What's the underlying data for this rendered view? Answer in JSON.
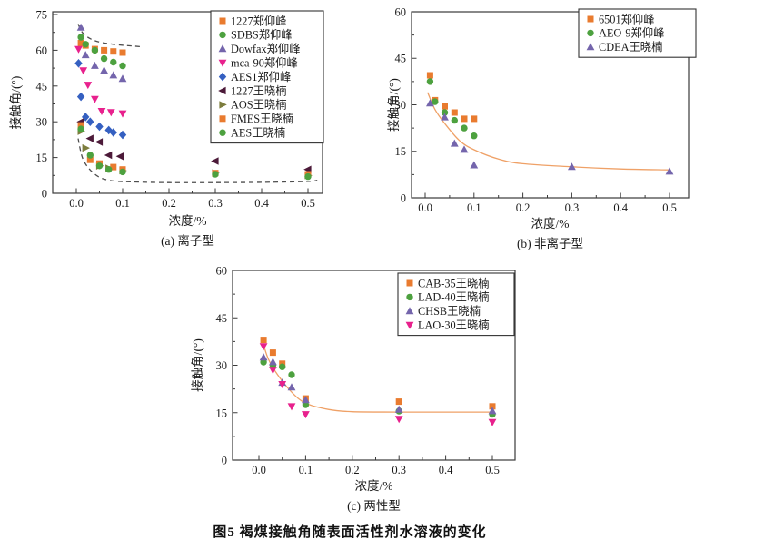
{
  "page": {
    "caption": "图5  褐煤接触角随表面活性剂水溶液的变化",
    "colors": {
      "axis": "#3a3a3a",
      "text": "#1a1a1a",
      "background": "#ffffff"
    }
  },
  "chart_data": [
    {
      "id": "a",
      "type": "scatter",
      "subcaption": "(a) 离子型",
      "xlabel": "浓度/%",
      "ylabel": "接触角/(°)",
      "xlim": [
        -0.05,
        0.53
      ],
      "ylim": [
        0,
        75
      ],
      "grid": false,
      "legend_position": "top-right",
      "xticks": {
        "values": [
          0,
          0.1,
          0.2,
          0.3,
          0.4,
          0.5
        ],
        "labels": [
          "0.0",
          "0.1",
          "0.2",
          "0.3",
          "0.4",
          "0.5"
        ]
      },
      "yticks": {
        "values": [
          0,
          15,
          30,
          45,
          60,
          75
        ],
        "labels": [
          "0",
          "15",
          "30",
          "45",
          "60",
          "75"
        ]
      },
      "series": [
        {
          "name": "1227郑仰峰",
          "marker": "square",
          "color": "#E97B2F",
          "x": [
            0.01,
            0.02,
            0.04,
            0.06,
            0.08,
            0.1
          ],
          "y": [
            63,
            62,
            60.5,
            60,
            59.5,
            59
          ]
        },
        {
          "name": "SDBS郑仰峰",
          "marker": "circle",
          "color": "#4DA13F",
          "x": [
            0.01,
            0.02,
            0.04,
            0.06,
            0.08,
            0.1
          ],
          "y": [
            65.5,
            62.5,
            60,
            56.5,
            55,
            53.5
          ]
        },
        {
          "name": "Dowfax郑仰峰",
          "marker": "triangle-up",
          "color": "#7465AC",
          "x": [
            0.01,
            0.02,
            0.04,
            0.06,
            0.08,
            0.1
          ],
          "y": [
            69.5,
            58,
            53.5,
            51.5,
            49.5,
            48
          ]
        },
        {
          "name": "mca-90郑仰峰",
          "marker": "triangle-down",
          "color": "#E8218D",
          "x": [
            0.005,
            0.015,
            0.025,
            0.04,
            0.055,
            0.075,
            0.1
          ],
          "y": [
            60.5,
            51.5,
            45.5,
            39.5,
            34.5,
            34,
            33.5
          ]
        },
        {
          "name": "AES1郑仰峰",
          "marker": "diamond",
          "color": "#3560C1",
          "x": [
            0.005,
            0.01,
            0.02,
            0.03,
            0.05,
            0.07,
            0.08,
            0.1
          ],
          "y": [
            54.5,
            40.5,
            32,
            30,
            28,
            26.5,
            25.5,
            24.5
          ]
        },
        {
          "name": "1227王晓楠",
          "marker": "triangle-left",
          "color": "#4C1A39",
          "x": [
            0.01,
            0.03,
            0.05,
            0.07,
            0.095,
            0.3,
            0.5
          ],
          "y": [
            30,
            23,
            21.5,
            16,
            15.5,
            13.5,
            10
          ]
        },
        {
          "name": "AOS王晓楠",
          "marker": "triangle-right",
          "color": "#7D7D3D",
          "x": [
            0.01,
            0.02,
            0.05,
            0.07,
            0.1,
            0.3,
            0.5
          ],
          "y": [
            26,
            19,
            11.5,
            10.5,
            9.5,
            8.5,
            7.5
          ]
        },
        {
          "name": "FMES王晓楠",
          "marker": "square",
          "color": "#E97B2F",
          "x": [
            0.01,
            0.03,
            0.05,
            0.08,
            0.1,
            0.3,
            0.5
          ],
          "y": [
            28.5,
            14,
            12.5,
            11,
            10,
            8.5,
            8
          ]
        },
        {
          "name": "AES王晓楠",
          "marker": "circle",
          "color": "#4DA13F",
          "x": [
            0.01,
            0.03,
            0.05,
            0.07,
            0.1,
            0.3,
            0.5
          ],
          "y": [
            27,
            16,
            11.5,
            10,
            9,
            8,
            7
          ]
        }
      ],
      "curves": [
        {
          "name": "upper-envelope",
          "style": "dashed",
          "color": "#4d4d4d",
          "points": [
            [
              0.004,
              71
            ],
            [
              0.015,
              67
            ],
            [
              0.04,
              64
            ],
            [
              0.08,
              62.5
            ],
            [
              0.14,
              61.5
            ]
          ]
        },
        {
          "name": "lower-envelope",
          "style": "dashed",
          "color": "#4d4d4d",
          "points": [
            [
              0.004,
              23
            ],
            [
              0.015,
              14
            ],
            [
              0.04,
              8
            ],
            [
              0.07,
              5.5
            ],
            [
              0.12,
              4.8
            ],
            [
              0.2,
              4.5
            ],
            [
              0.3,
              4.5
            ],
            [
              0.4,
              4.6
            ],
            [
              0.5,
              5
            ],
            [
              0.52,
              5.5
            ]
          ]
        }
      ]
    },
    {
      "id": "b",
      "type": "scatter",
      "subcaption": "(b) 非离子型",
      "xlabel": "浓度/%",
      "ylabel": "接触角/(°)",
      "xlim": [
        -0.05,
        0.54
      ],
      "ylim": [
        0,
        60
      ],
      "grid": false,
      "legend_position": "top-right",
      "xticks": {
        "values": [
          0,
          0.1,
          0.2,
          0.3,
          0.4,
          0.5
        ],
        "labels": [
          "0.0",
          "0.1",
          "0.2",
          "0.3",
          "0.4",
          "0.5"
        ]
      },
      "yticks": {
        "values": [
          0,
          15,
          30,
          45,
          60
        ],
        "labels": [
          "0",
          "15",
          "30",
          "45",
          "60"
        ]
      },
      "series": [
        {
          "name": "6501郑仰峰",
          "marker": "square",
          "color": "#E97B2F",
          "x": [
            0.01,
            0.02,
            0.04,
            0.06,
            0.08,
            0.1
          ],
          "y": [
            39.5,
            31.5,
            29.5,
            27.5,
            25.5,
            25.5
          ]
        },
        {
          "name": "AEO-9郑仰峰",
          "marker": "circle",
          "color": "#4DA13F",
          "x": [
            0.01,
            0.02,
            0.04,
            0.06,
            0.08,
            0.1
          ],
          "y": [
            37.5,
            31,
            27.5,
            25,
            22.5,
            20
          ]
        },
        {
          "name": "CDEA王晓楠",
          "marker": "triangle-up",
          "color": "#7465AC",
          "x": [
            0.01,
            0.04,
            0.06,
            0.08,
            0.1,
            0.3,
            0.5
          ],
          "y": [
            30.5,
            26,
            17.5,
            15.5,
            10.5,
            10,
            8.5
          ]
        }
      ],
      "curves": [
        {
          "name": "fit-curve",
          "style": "solid",
          "color": "#EFA167",
          "points": [
            [
              0.005,
              34
            ],
            [
              0.02,
              28.5
            ],
            [
              0.04,
              24
            ],
            [
              0.07,
              18.5
            ],
            [
              0.1,
              15.5
            ],
            [
              0.15,
              12.5
            ],
            [
              0.2,
              11
            ],
            [
              0.3,
              10
            ],
            [
              0.4,
              9.3
            ],
            [
              0.5,
              9
            ]
          ]
        }
      ]
    },
    {
      "id": "c",
      "type": "scatter",
      "subcaption": "(c) 两性型",
      "xlabel": "浓度/%",
      "ylabel": "接触角/(°)",
      "xlim": [
        -0.05,
        0.55
      ],
      "ylim": [
        0,
        60
      ],
      "grid": false,
      "legend_position": "top-right",
      "xticks": {
        "values": [
          0,
          0.1,
          0.2,
          0.3,
          0.4,
          0.5
        ],
        "labels": [
          "0.0",
          "0.1",
          "0.2",
          "0.3",
          "0.4",
          "0.5"
        ]
      },
      "yticks": {
        "values": [
          0,
          15,
          30,
          45,
          60
        ],
        "labels": [
          "0",
          "15",
          "30",
          "45",
          "60"
        ]
      },
      "series": [
        {
          "name": "CAB-35王晓楠",
          "marker": "square",
          "color": "#E97B2F",
          "x": [
            0.01,
            0.03,
            0.05,
            0.1,
            0.3,
            0.5
          ],
          "y": [
            38,
            34,
            30.5,
            19.5,
            18.5,
            17
          ]
        },
        {
          "name": "LAD-40王晓楠",
          "marker": "circle",
          "color": "#4DA13F",
          "x": [
            0.01,
            0.03,
            0.05,
            0.07,
            0.1,
            0.3,
            0.5
          ],
          "y": [
            31,
            30,
            29.5,
            27,
            17.5,
            15.5,
            14.5
          ]
        },
        {
          "name": "CHSB王晓楠",
          "marker": "triangle-up",
          "color": "#7465AC",
          "x": [
            0.01,
            0.03,
            0.05,
            0.07,
            0.1,
            0.3,
            0.5
          ],
          "y": [
            32.5,
            31,
            24.5,
            23,
            19,
            16,
            15.5
          ]
        },
        {
          "name": "LAO-30王晓楠",
          "marker": "triangle-down",
          "color": "#E8218D",
          "x": [
            0.01,
            0.03,
            0.05,
            0.07,
            0.1,
            0.3,
            0.5
          ],
          "y": [
            36,
            28.5,
            24,
            17,
            14.5,
            13,
            12
          ]
        }
      ],
      "curves": [
        {
          "name": "fit-curve",
          "style": "solid",
          "color": "#EFA167",
          "points": [
            [
              0.008,
              37.5
            ],
            [
              0.02,
              32
            ],
            [
              0.04,
              27
            ],
            [
              0.07,
              21.5
            ],
            [
              0.1,
              18
            ],
            [
              0.15,
              16
            ],
            [
              0.2,
              15.3
            ],
            [
              0.3,
              15.2
            ],
            [
              0.4,
              15.2
            ],
            [
              0.5,
              15.2
            ]
          ]
        }
      ]
    }
  ]
}
